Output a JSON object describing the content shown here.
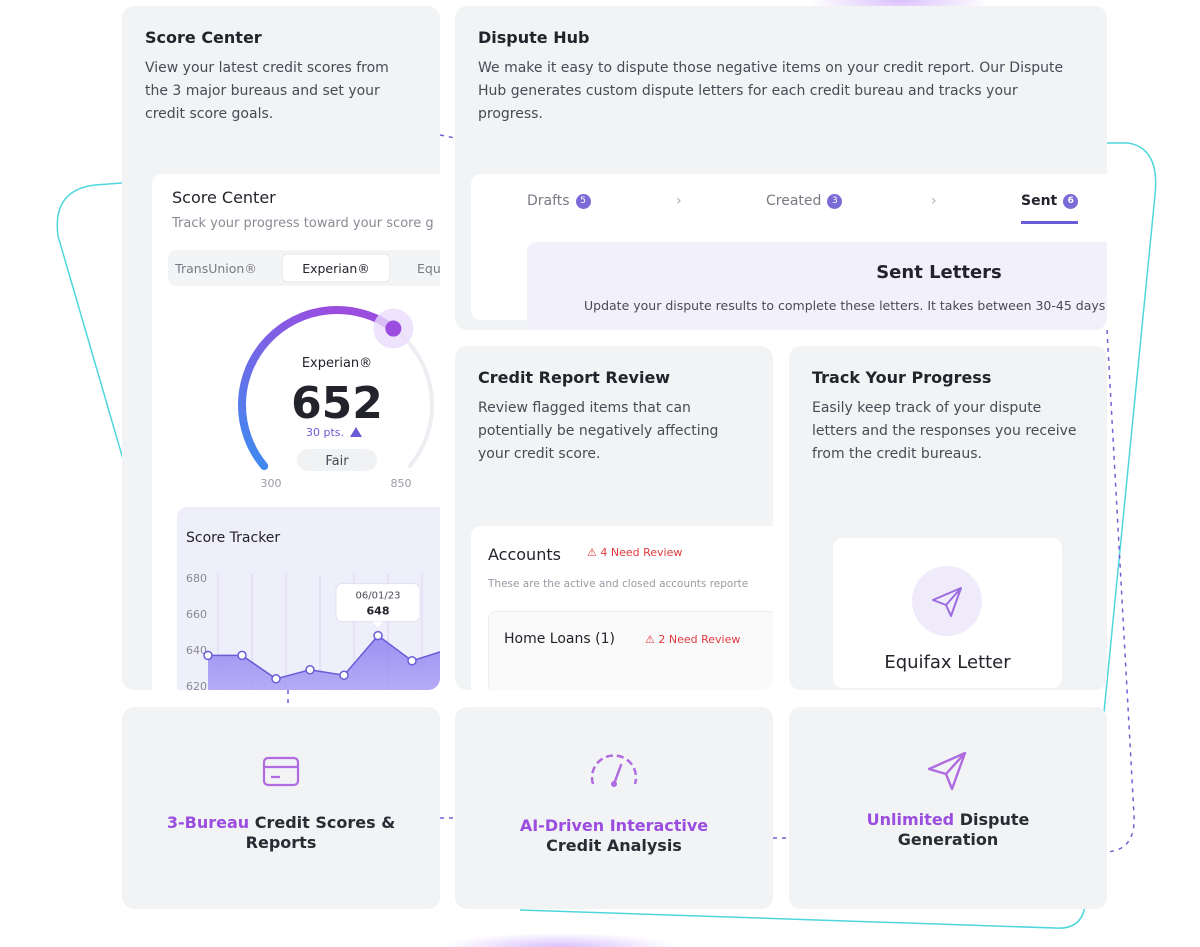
{
  "score_center": {
    "title": "Score Center",
    "description": "View your latest credit scores from the 3 major bureaus and set your credit score goals.",
    "widget": {
      "title": "Score Center",
      "subtitle": "Track your progress toward your score g",
      "tabs": [
        "TransUnion®",
        "Experian®",
        "Equ"
      ],
      "gauge": {
        "bureau": "Experian®",
        "score": 652,
        "change": "30 pts.",
        "rating": "Fair",
        "min": 300,
        "max": 850
      },
      "tracker": {
        "title": "Score Tracker",
        "ylim": [
          620,
          680
        ],
        "yticks": [
          620,
          640,
          660,
          680
        ],
        "values": [
          637,
          637,
          624,
          629,
          626,
          648,
          634,
          640
        ],
        "tooltip_date": "06/01/23",
        "tooltip_index": 5
      }
    }
  },
  "dispute_hub": {
    "title": "Dispute Hub",
    "description": "We make it easy to dispute those negative items on your credit report. Our Dispute Hub generates custom dispute letters for each credit bureau and tracks your progress.",
    "tabs": [
      {
        "label": "Drafts",
        "count": 5
      },
      {
        "label": "Created",
        "count": 3
      },
      {
        "label": "Sent",
        "count": 6
      }
    ],
    "panel_title": "Sent Letters",
    "panel_text": "Update your dispute results to complete these letters. It takes between 30-45 days"
  },
  "credit_report_review": {
    "title": "Credit Report Review",
    "description": "Review flagged items that can potentially be negatively affecting your credit score.",
    "accounts_title": "Accounts",
    "accounts_flag": "4 Need Review",
    "accounts_text": "These are the active and closed accounts reporte",
    "item": "Home Loans (1)",
    "item_flag": "2 Need Review"
  },
  "track_progress": {
    "title": "Track Your Progress",
    "description": "Easily keep track of your dispute letters and the responses you receive from the credit bureaus.",
    "letter": "Equifax Letter"
  },
  "features": [
    {
      "highlight": "3-Bureau",
      "text": "Credit Scores & Reports"
    },
    {
      "highlight": "AI-Driven Interactive",
      "text": "Credit Analysis"
    },
    {
      "highlight": "Unlimited",
      "text": "Dispute Generation"
    }
  ]
}
